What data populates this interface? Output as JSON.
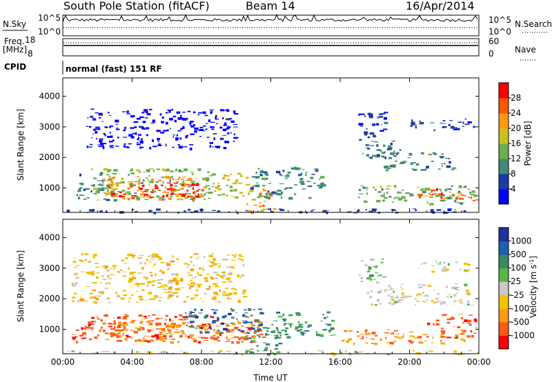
{
  "header": {
    "station": "South Pole Station (fitACF)",
    "beam": "Beam 14",
    "date": "16/Apr/2014"
  },
  "top_panels": {
    "nsky_label": "N.Sky",
    "nsky_ticks": [
      "10^5",
      "10^0"
    ],
    "nsearch_label": "N.Search",
    "nsearch_ticks": [
      "10^5",
      "10^0"
    ],
    "freq_label": "Freq.",
    "freq_unit": "[MHz]",
    "freq_ticks": [
      "18",
      "8"
    ],
    "nave_label": "Nave",
    "nave_ticks": [
      "60",
      "0"
    ],
    "cpid_label": "CPID",
    "cpid_text": "normal (fast) 151 RF"
  },
  "chart_data": [
    {
      "type": "heatmap",
      "name": "power",
      "ylabel": "Slant Range [km]",
      "y_ticks": [
        "4000",
        "3000",
        "2000",
        "1000"
      ],
      "x_ticks": [
        "00:00",
        "04:00",
        "08:00",
        "12:00",
        "16:00",
        "20:00",
        "00:00"
      ],
      "xlim_hours": [
        0,
        24
      ],
      "ylim_km": [
        200,
        4600
      ],
      "colorbar": {
        "label": "Power [dB]",
        "ticks": [
          "28",
          "24",
          "20",
          "16",
          "12",
          "8",
          "4"
        ],
        "colors": [
          "#0000ff",
          "#1c3aa8",
          "#3f8a72",
          "#6ab04c",
          "#c8c020",
          "#ff9a10",
          "#ff5500",
          "#ff0000"
        ]
      },
      "regions": [
        {
          "t": [
            0.0,
            24.0
          ],
          "r": [
            200,
            330
          ],
          "level": 1
        },
        {
          "t": [
            0.7,
            3.0
          ],
          "r": [
            600,
            1500
          ],
          "level": 2
        },
        {
          "t": [
            1.6,
            8.6
          ],
          "r": [
            600,
            1650
          ],
          "level": 3
        },
        {
          "t": [
            2.3,
            8.2
          ],
          "r": [
            650,
            1400
          ],
          "level": 5
        },
        {
          "t": [
            2.6,
            7.9
          ],
          "r": [
            700,
            1200
          ],
          "level": 7
        },
        {
          "t": [
            8.6,
            10.6
          ],
          "r": [
            700,
            1500
          ],
          "level": 4
        },
        {
          "t": [
            10.6,
            12.2
          ],
          "r": [
            200,
            1100
          ],
          "level": 5
        },
        {
          "t": [
            10.8,
            15.0
          ],
          "r": [
            700,
            1700
          ],
          "level": 2
        },
        {
          "t": [
            17.0,
            23.8
          ],
          "r": [
            500,
            1100
          ],
          "level": 3
        },
        {
          "t": [
            20.5,
            23.8
          ],
          "r": [
            600,
            1000
          ],
          "level": 6
        },
        {
          "t": [
            17.0,
            19.5
          ],
          "r": [
            2000,
            2600
          ],
          "level": 2
        },
        {
          "t": [
            17.0,
            18.6
          ],
          "r": [
            2600,
            3500
          ],
          "level": 1
        },
        {
          "t": [
            18.3,
            22.5
          ],
          "r": [
            1600,
            2200
          ],
          "level": 2
        },
        {
          "t": [
            20.0,
            23.7
          ],
          "r": [
            2900,
            3300
          ],
          "level": 1
        },
        {
          "t": [
            1.3,
            10.0
          ],
          "r": [
            2300,
            3600
          ],
          "level": 0
        }
      ]
    },
    {
      "type": "heatmap",
      "name": "velocity",
      "ylabel": "Slant Range [km]",
      "xlabel": "Time UT",
      "y_ticks": [
        "4000",
        "3000",
        "2000",
        "1000"
      ],
      "x_ticks": [
        "00:00",
        "04:00",
        "08:00",
        "12:00",
        "16:00",
        "20:00",
        "00:00"
      ],
      "xlim_hours": [
        0,
        24
      ],
      "ylim_km": [
        200,
        4600
      ],
      "colorbar": {
        "label": "Velocity [m s^-1]",
        "ticks": [
          "1000",
          "500",
          "100",
          "25",
          "-25",
          "-100",
          "-500",
          "-1000"
        ],
        "colors": [
          "#ff0000",
          "#ff5a10",
          "#ff9a10",
          "#f2c000",
          "#c8c8c8",
          "#55b844",
          "#3a8a64",
          "#2060b0",
          "#2030a0"
        ]
      },
      "regions": [
        {
          "t": [
            0.0,
            24.0
          ],
          "r": [
            200,
            330
          ],
          "level": 4
        },
        {
          "t": [
            0.5,
            11.5
          ],
          "r": [
            600,
            1500
          ],
          "level": 1
        },
        {
          "t": [
            3.0,
            11.0
          ],
          "r": [
            600,
            1300
          ],
          "level": 2
        },
        {
          "t": [
            7.0,
            11.5
          ],
          "r": [
            900,
            1700
          ],
          "level": 7
        },
        {
          "t": [
            10.5,
            12.5
          ],
          "r": [
            200,
            1100
          ],
          "level": 6
        },
        {
          "t": [
            12.0,
            15.5
          ],
          "r": [
            700,
            1600
          ],
          "level": 6
        },
        {
          "t": [
            16.0,
            23.8
          ],
          "r": [
            550,
            1000
          ],
          "level": 2
        },
        {
          "t": [
            21.0,
            23.8
          ],
          "r": [
            700,
            1500
          ],
          "level": 1
        },
        {
          "t": [
            17.5,
            23.5
          ],
          "r": [
            1800,
            2500
          ],
          "level": 4
        },
        {
          "t": [
            17.0,
            18.5
          ],
          "r": [
            2500,
            3400
          ],
          "level": 5
        },
        {
          "t": [
            20.5,
            23.5
          ],
          "r": [
            2900,
            3300
          ],
          "level": 4
        },
        {
          "t": [
            0.5,
            10.5
          ],
          "r": [
            1900,
            3500
          ],
          "level": 3
        }
      ]
    }
  ]
}
